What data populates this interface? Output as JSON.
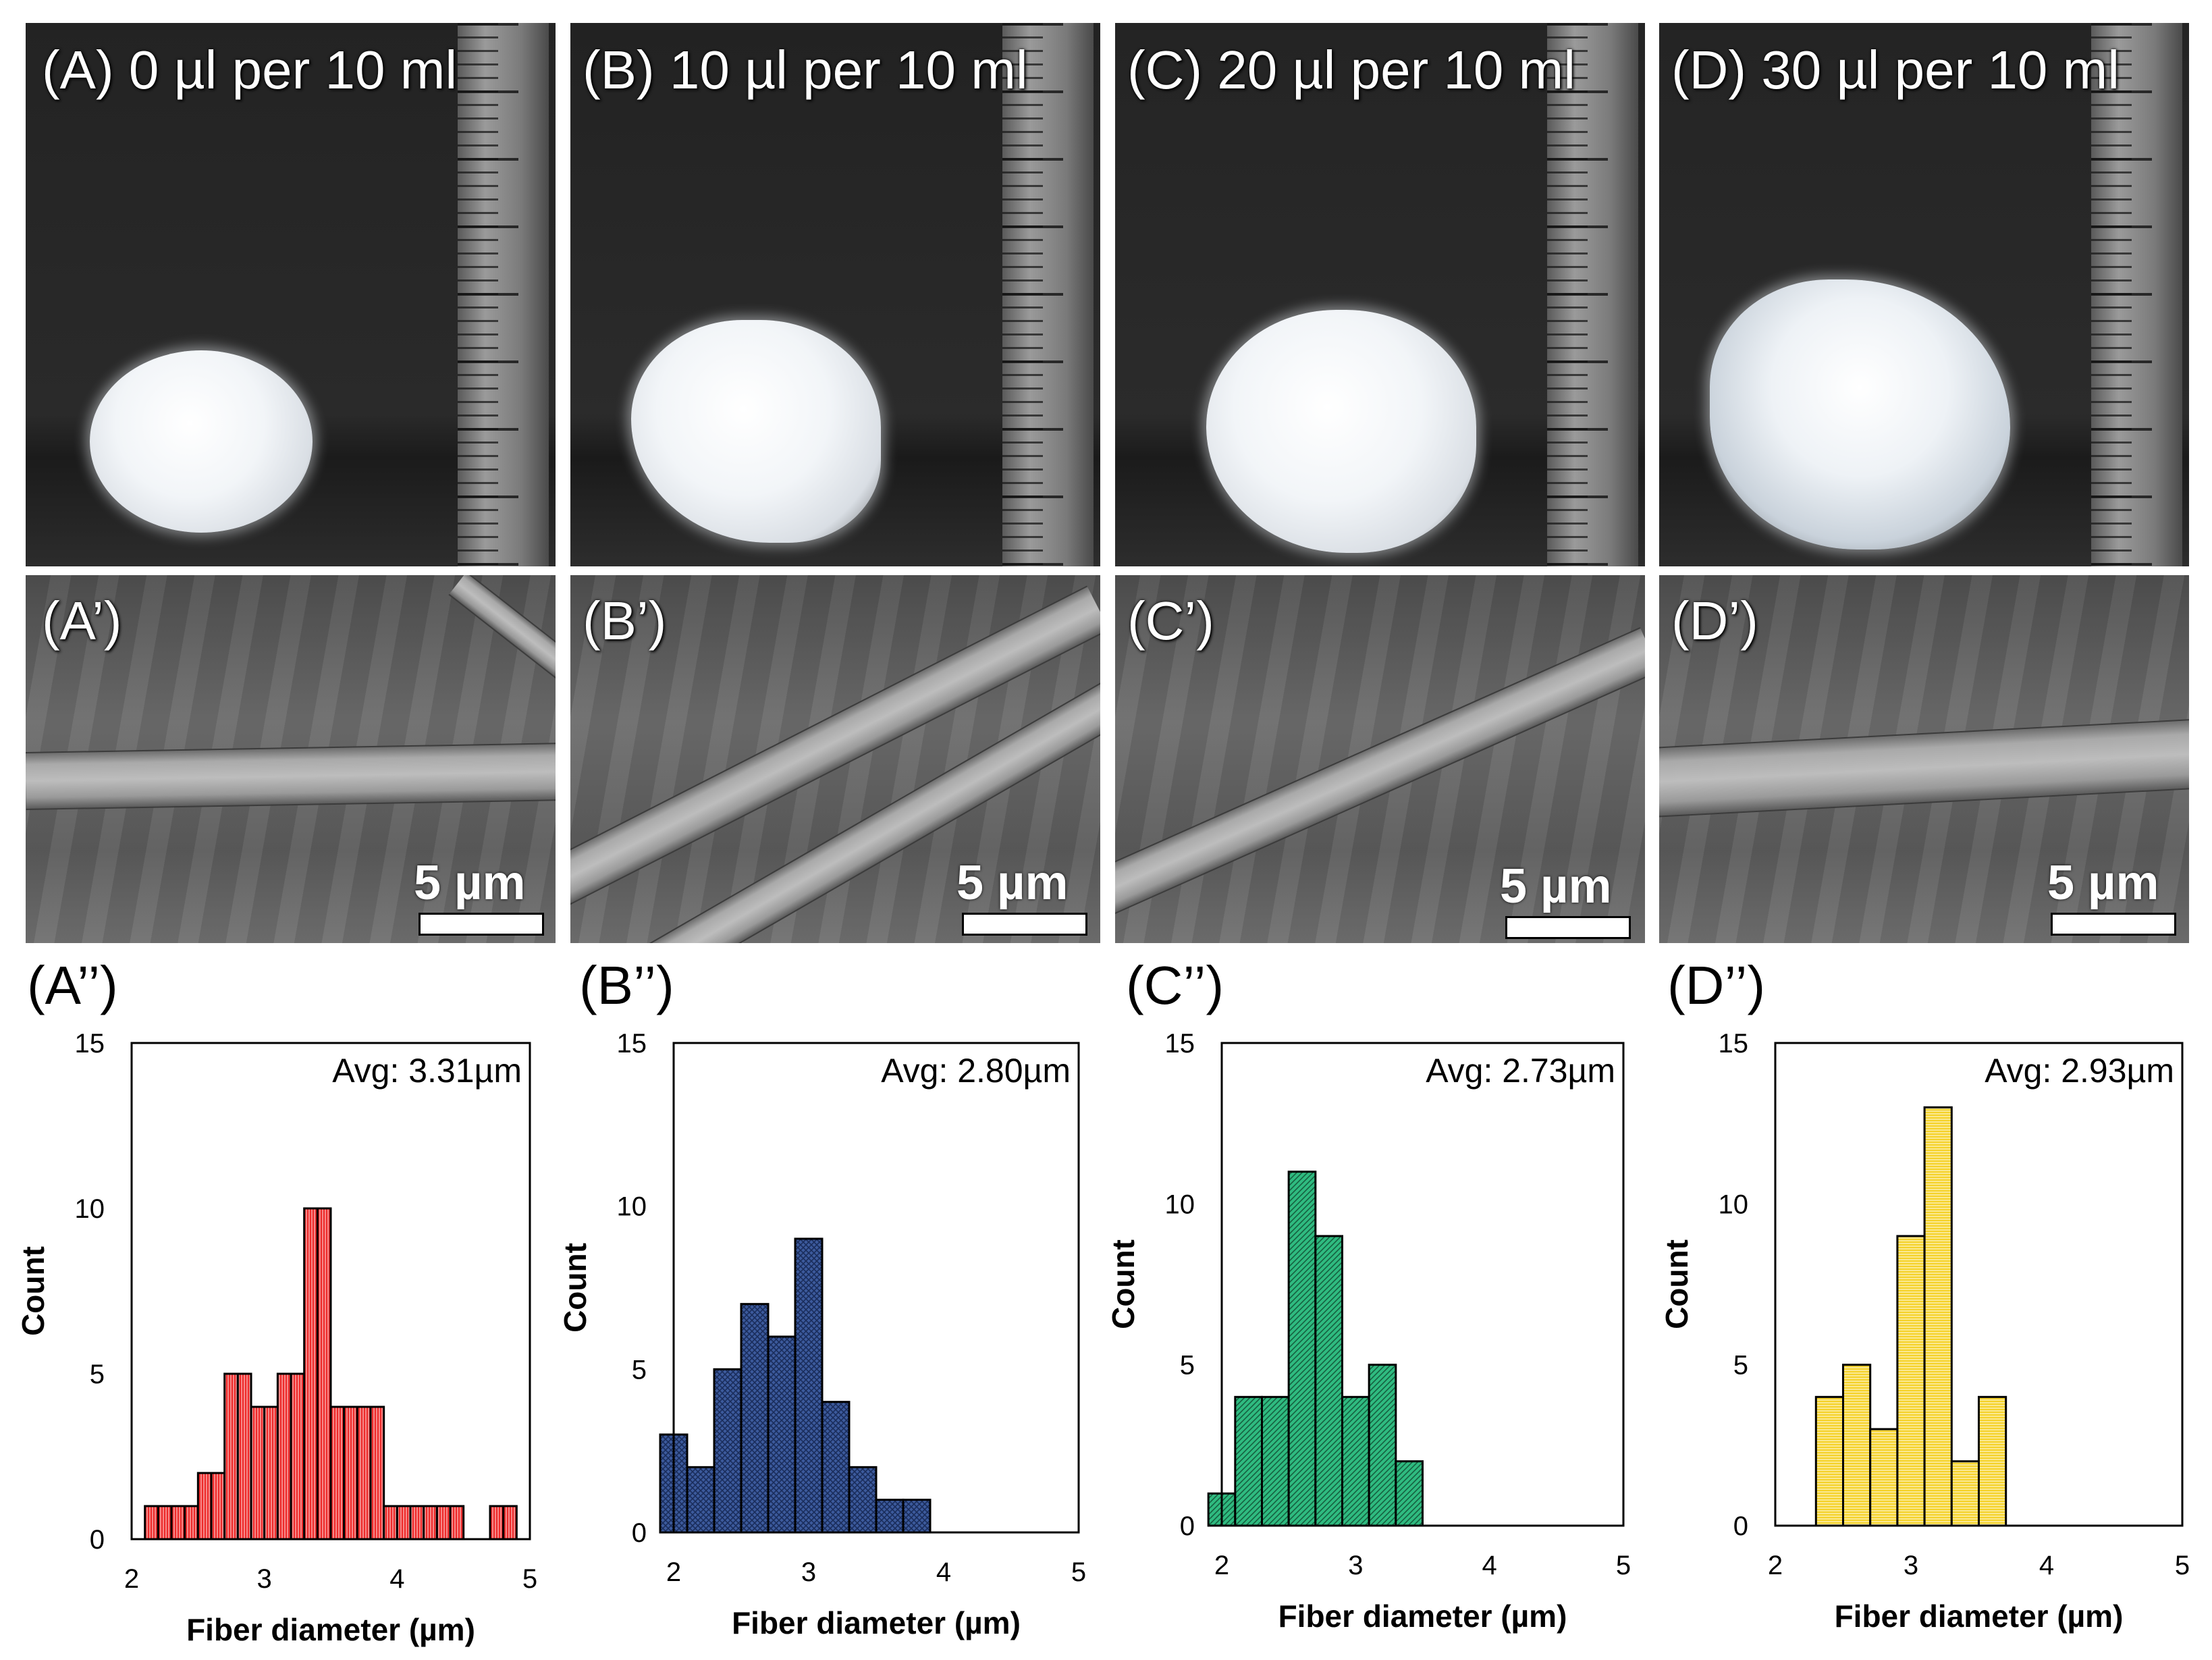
{
  "photos": [
    {
      "label": "(A) 0 µl per 10 ml"
    },
    {
      "label": "(B) 10 µl per 10 ml"
    },
    {
      "label": "(C) 20 µl per 10 ml"
    },
    {
      "label": "(D) 30 µl per 10 ml"
    }
  ],
  "sem": [
    {
      "label": "(A’)",
      "scale": "5 µm"
    },
    {
      "label": "(B’)",
      "scale": "5 µm"
    },
    {
      "label": "(C’)",
      "scale": "5 µm"
    },
    {
      "label": "(D’)",
      "scale": "5 µm"
    }
  ],
  "colors": {
    "red": "#ee2a2a",
    "blue": "#3c5a9c",
    "green": "#2fbb80",
    "yellow": "#f5d22a"
  },
  "chart_data": [
    {
      "type": "bar",
      "panel": "(A’’)",
      "annotation": "Avg: 3.31µm",
      "xlabel": "Fiber diameter (µm)",
      "ylabel": "Count",
      "xlim": [
        2,
        5
      ],
      "ylim": [
        0,
        15
      ],
      "xticks": [
        "2",
        "3",
        "4",
        "5"
      ],
      "yticks": [
        "0",
        "5",
        "10",
        "15"
      ],
      "bin_width": 0.1,
      "bin_starts": [
        2.1,
        2.2,
        2.3,
        2.4,
        2.5,
        2.6,
        2.7,
        2.8,
        2.9,
        3.0,
        3.1,
        3.2,
        3.3,
        3.4,
        3.5,
        3.6,
        3.7,
        3.8,
        3.9,
        4.0,
        4.1,
        4.2,
        4.3,
        4.4,
        4.5,
        4.6,
        4.7,
        4.8
      ],
      "values": [
        1,
        1,
        1,
        1,
        2,
        2,
        5,
        5,
        4,
        4,
        5,
        5,
        10,
        10,
        4,
        4,
        4,
        4,
        1,
        1,
        1,
        1,
        1,
        1,
        0,
        0,
        1,
        1
      ],
      "color": "#ee2a2a"
    },
    {
      "type": "bar",
      "panel": "(B’’)",
      "annotation": "Avg: 2.80µm",
      "xlabel": "Fiber diameter (µm)",
      "ylabel": "Count",
      "xlim": [
        2,
        5
      ],
      "ylim": [
        0,
        15
      ],
      "xticks": [
        "2",
        "3",
        "4",
        "5"
      ],
      "yticks": [
        "0",
        "5",
        "10",
        "15"
      ],
      "bin_width": 0.2,
      "bin_starts": [
        1.9,
        2.1,
        2.3,
        2.5,
        2.7,
        2.9,
        3.1,
        3.3,
        3.5,
        3.7
      ],
      "values": [
        3,
        2,
        5,
        7,
        6,
        9,
        4,
        2,
        1,
        1
      ],
      "color": "#3c5a9c"
    },
    {
      "type": "bar",
      "panel": "(C’’)",
      "annotation": "Avg: 2.73µm",
      "xlabel": "Fiber diameter (µm)",
      "ylabel": "Count",
      "xlim": [
        2,
        5
      ],
      "ylim": [
        0,
        15
      ],
      "xticks": [
        "2",
        "3",
        "4",
        "5"
      ],
      "yticks": [
        "0",
        "5",
        "10",
        "15"
      ],
      "bin_width": 0.2,
      "bin_starts": [
        1.9,
        2.1,
        2.3,
        2.5,
        2.7,
        2.9,
        3.1,
        3.3
      ],
      "values": [
        1,
        4,
        4,
        11,
        9,
        4,
        5,
        2
      ],
      "color": "#2fbb80"
    },
    {
      "type": "bar",
      "panel": "(D’’)",
      "annotation": "Avg: 2.93µm",
      "xlabel": "Fiber diameter (µm)",
      "ylabel": "Count",
      "xlim": [
        2,
        5
      ],
      "ylim": [
        0,
        15
      ],
      "xticks": [
        "2",
        "3",
        "4",
        "5"
      ],
      "yticks": [
        "0",
        "5",
        "10",
        "15"
      ],
      "bin_width": 0.2,
      "bin_starts": [
        2.3,
        2.5,
        2.7,
        2.9,
        3.1,
        3.3,
        3.5
      ],
      "values": [
        4,
        5,
        3,
        9,
        13,
        2,
        4
      ],
      "color": "#f5d22a"
    }
  ]
}
